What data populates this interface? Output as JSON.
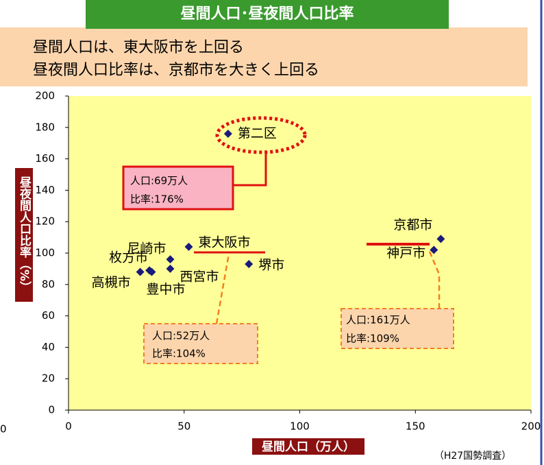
{
  "header": {
    "title": "昼間人口･昼夜間人口比率",
    "lines": [
      "昼間人口は、東大阪市を上回る",
      "昼夜間人口比率は、京都市を大きく上回る"
    ]
  },
  "chart_data": {
    "type": "scatter",
    "point_labels": [
      "第二区",
      "東大阪市",
      "尼崎市",
      "西宮市",
      "枚方市",
      "豊中市",
      "高槻市",
      "堺市",
      "京都市",
      "神戸市"
    ],
    "series": [
      {
        "color": "#1a1a7a",
        "x": [
          69,
          52,
          44,
          44,
          35,
          36,
          31,
          78,
          161,
          158
        ],
        "values": [
          176,
          104,
          96,
          90,
          89,
          88,
          88,
          93,
          109,
          102
        ]
      }
    ],
    "xlim": [
      0,
      200
    ],
    "xticks": [
      0,
      50,
      100,
      150,
      200
    ],
    "ylim": [
      0,
      200
    ],
    "yticks": [
      0,
      20,
      40,
      60,
      80,
      100,
      120,
      140,
      160,
      180,
      200
    ],
    "x_label": "昼間人口（万人）",
    "y_label": "昼夜間人口比率（%）",
    "annotations": [
      [
        "人口:69万人",
        "比率:176%"
      ],
      [
        "人口:52万人",
        "比率:104%"
      ],
      [
        "人口:161万人",
        "比率:109%"
      ]
    ],
    "stray_label": "0",
    "source": "（H27国勢調査）"
  }
}
